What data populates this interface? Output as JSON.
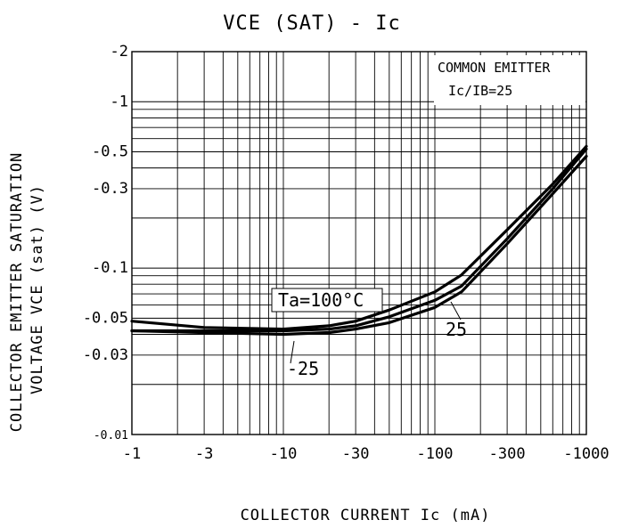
{
  "chart_data": {
    "type": "line",
    "title": "VCE (SAT) - Ic",
    "xlabel": "COLLECTOR CURRENT Ic (mA)",
    "ylabel_line1": "COLLECTOR EMITTER SATURATION",
    "ylabel_line2": "VOLTAGE VCE (sat) (V)",
    "x_scale": "log",
    "y_scale": "log",
    "xlim": [
      -1,
      -1000
    ],
    "ylim": [
      -0.01,
      -2
    ],
    "grid": true,
    "x_ticks": [
      {
        "value": -1,
        "label": "-1"
      },
      {
        "value": -3,
        "label": "-3"
      },
      {
        "value": -10,
        "label": "-10"
      },
      {
        "value": -30,
        "label": "-30"
      },
      {
        "value": -100,
        "label": "-100"
      },
      {
        "value": -300,
        "label": "-300"
      },
      {
        "value": -1000,
        "label": "-1000"
      }
    ],
    "y_ticks": [
      {
        "value": -2,
        "label": "-2"
      },
      {
        "value": -1,
        "label": "-1"
      },
      {
        "value": -0.5,
        "label": "-0.5"
      },
      {
        "value": -0.3,
        "label": "-0.3"
      },
      {
        "value": -0.1,
        "label": "-0.1"
      },
      {
        "value": -0.05,
        "label": "-0.05"
      },
      {
        "value": -0.03,
        "label": "-0.03"
      },
      {
        "value": -0.01,
        "label": "-0.01"
      }
    ],
    "legend_box": {
      "line1": "COMMON EMITTER",
      "line2": "Ic/IB=25"
    },
    "series": [
      {
        "name": "Ta=100°C",
        "x": [
          -1,
          -3,
          -10,
          -20,
          -30,
          -50,
          -100,
          -150,
          -300,
          -600,
          -1000
        ],
        "y": [
          -0.048,
          -0.044,
          -0.043,
          -0.045,
          -0.048,
          -0.056,
          -0.072,
          -0.091,
          -0.17,
          -0.32,
          -0.54
        ]
      },
      {
        "name": "25",
        "x": [
          -1,
          -3,
          -10,
          -20,
          -30,
          -50,
          -100,
          -150,
          -300,
          -600,
          -1000
        ],
        "y": [
          -0.042,
          -0.042,
          -0.042,
          -0.043,
          -0.045,
          -0.051,
          -0.064,
          -0.078,
          -0.15,
          -0.3,
          -0.52
        ]
      },
      {
        "name": "-25",
        "x": [
          -1,
          -3,
          -10,
          -20,
          -30,
          -50,
          -100,
          -150,
          -300,
          -600,
          -1000
        ],
        "y": [
          -0.042,
          -0.041,
          -0.04,
          -0.041,
          -0.043,
          -0.047,
          -0.058,
          -0.072,
          -0.14,
          -0.28,
          -0.47
        ]
      }
    ],
    "line_color": "#000000"
  }
}
